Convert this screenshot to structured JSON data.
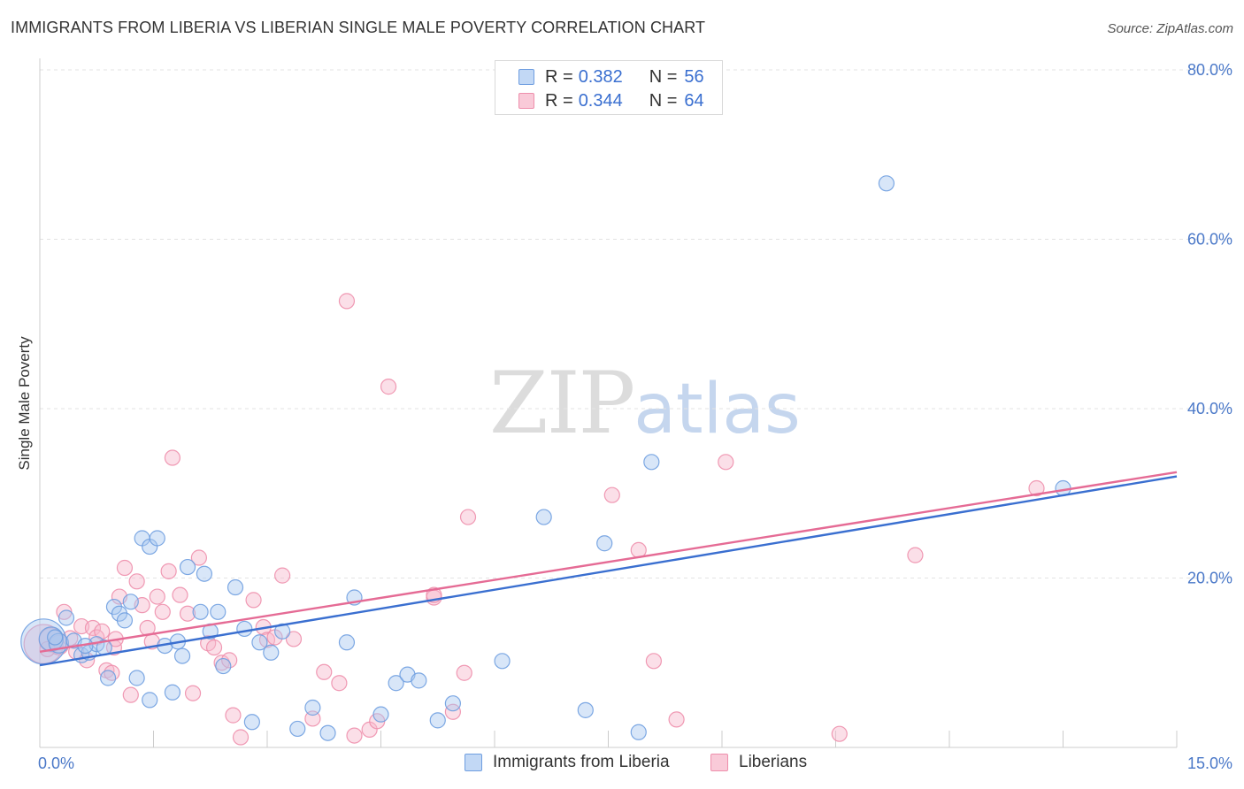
{
  "title": "IMMIGRANTS FROM LIBERIA VS LIBERIAN SINGLE MALE POVERTY CORRELATION CHART",
  "source": "Source: ZipAtlas.com",
  "watermark": {
    "zip": "ZIP",
    "atlas": "atlas"
  },
  "legend": {
    "rows": [
      {
        "r_label": "R =",
        "r_value": "0.382",
        "n_label": "N =",
        "n_value": "56"
      },
      {
        "r_label": "R =",
        "r_value": "0.344",
        "n_label": "N =",
        "n_value": "64"
      }
    ]
  },
  "bottom_legend": [
    "Immigrants from Liberia",
    "Liberians"
  ],
  "colors": {
    "blue_fill": "#a8c8f0",
    "blue_stroke": "#6f9ee0",
    "blue_line": "#3a6fd0",
    "pink_fill": "#f7b9cb",
    "pink_stroke": "#ee8fac",
    "pink_line": "#e56b95",
    "tick_text": "#4a78c8",
    "grid": "#e3e3e3"
  },
  "chart_data": {
    "type": "scatter",
    "title": "IMMIGRANTS FROM LIBERIA VS LIBERIAN SINGLE MALE POVERTY CORRELATION CHART",
    "xlabel": "",
    "ylabel": "Single Male Poverty",
    "xlim": [
      0,
      15
    ],
    "ylim": [
      0,
      80
    ],
    "x_tick_labels": [
      "0.0%",
      "15.0%"
    ],
    "y_ticks": [
      20,
      40,
      60,
      80
    ],
    "y_tick_labels": [
      "20.0%",
      "40.0%",
      "60.0%",
      "80.0%"
    ],
    "grid": true,
    "legend_position": "top-center",
    "series": [
      {
        "name": "Immigrants from Liberia",
        "color": "#a8c8f0",
        "r": 0.382,
        "n": 56,
        "trend": {
          "x": [
            0,
            15
          ],
          "y": [
            9.7,
            32.0
          ]
        },
        "points": [
          {
            "x": 0.05,
            "y": 12.5,
            "s": 3
          },
          {
            "x": 0.15,
            "y": 12.8,
            "s": 1.6
          },
          {
            "x": 0.25,
            "y": 12.3,
            "s": 1.3
          },
          {
            "x": 0.35,
            "y": 15.3,
            "s": 1
          },
          {
            "x": 0.45,
            "y": 12.6,
            "s": 1
          },
          {
            "x": 0.55,
            "y": 10.9,
            "s": 1
          },
          {
            "x": 0.65,
            "y": 11.2,
            "s": 1
          },
          {
            "x": 0.75,
            "y": 12.2,
            "s": 1
          },
          {
            "x": 0.85,
            "y": 11.8,
            "s": 1
          },
          {
            "x": 0.9,
            "y": 8.2,
            "s": 1
          },
          {
            "x": 0.98,
            "y": 16.6,
            "s": 1
          },
          {
            "x": 1.05,
            "y": 15.8,
            "s": 1
          },
          {
            "x": 1.12,
            "y": 15.0,
            "s": 1
          },
          {
            "x": 1.2,
            "y": 17.2,
            "s": 1
          },
          {
            "x": 1.28,
            "y": 8.2,
            "s": 1
          },
          {
            "x": 1.35,
            "y": 24.7,
            "s": 1
          },
          {
            "x": 1.45,
            "y": 23.7,
            "s": 1
          },
          {
            "x": 1.55,
            "y": 24.7,
            "s": 1
          },
          {
            "x": 1.45,
            "y": 5.6,
            "s": 1
          },
          {
            "x": 1.65,
            "y": 12.0,
            "s": 1
          },
          {
            "x": 1.75,
            "y": 6.5,
            "s": 1
          },
          {
            "x": 1.82,
            "y": 12.5,
            "s": 1
          },
          {
            "x": 1.88,
            "y": 10.8,
            "s": 1
          },
          {
            "x": 1.95,
            "y": 21.3,
            "s": 1
          },
          {
            "x": 2.12,
            "y": 16.0,
            "s": 1
          },
          {
            "x": 2.17,
            "y": 20.5,
            "s": 1
          },
          {
            "x": 2.25,
            "y": 13.7,
            "s": 1
          },
          {
            "x": 2.35,
            "y": 16.0,
            "s": 1
          },
          {
            "x": 2.42,
            "y": 9.6,
            "s": 1
          },
          {
            "x": 2.58,
            "y": 18.9,
            "s": 1
          },
          {
            "x": 2.7,
            "y": 14.0,
            "s": 1
          },
          {
            "x": 2.8,
            "y": 3.0,
            "s": 1
          },
          {
            "x": 2.9,
            "y": 12.4,
            "s": 1
          },
          {
            "x": 3.05,
            "y": 11.2,
            "s": 1
          },
          {
            "x": 3.2,
            "y": 13.7,
            "s": 1
          },
          {
            "x": 3.4,
            "y": 2.2,
            "s": 1
          },
          {
            "x": 3.6,
            "y": 4.7,
            "s": 1
          },
          {
            "x": 3.8,
            "y": 1.7,
            "s": 1
          },
          {
            "x": 4.05,
            "y": 12.4,
            "s": 1
          },
          {
            "x": 4.15,
            "y": 17.7,
            "s": 1
          },
          {
            "x": 4.5,
            "y": 3.9,
            "s": 1
          },
          {
            "x": 4.7,
            "y": 7.6,
            "s": 1
          },
          {
            "x": 4.85,
            "y": 8.6,
            "s": 1
          },
          {
            "x": 5.0,
            "y": 7.9,
            "s": 1
          },
          {
            "x": 5.25,
            "y": 3.2,
            "s": 1
          },
          {
            "x": 5.45,
            "y": 5.2,
            "s": 1
          },
          {
            "x": 6.1,
            "y": 10.2,
            "s": 1
          },
          {
            "x": 6.65,
            "y": 27.2,
            "s": 1
          },
          {
            "x": 7.2,
            "y": 4.4,
            "s": 1
          },
          {
            "x": 7.45,
            "y": 24.1,
            "s": 1
          },
          {
            "x": 7.9,
            "y": 1.8,
            "s": 1
          },
          {
            "x": 8.07,
            "y": 33.7,
            "s": 1
          },
          {
            "x": 11.17,
            "y": 66.6,
            "s": 1
          },
          {
            "x": 13.5,
            "y": 30.6,
            "s": 1
          },
          {
            "x": 0.2,
            "y": 13.0,
            "s": 1
          },
          {
            "x": 0.6,
            "y": 12.0,
            "s": 1
          }
        ]
      },
      {
        "name": "Liberians",
        "color": "#f7b9cb",
        "r": 0.344,
        "n": 64,
        "trend": {
          "x": [
            0,
            15
          ],
          "y": [
            11.3,
            32.5
          ]
        },
        "points": [
          {
            "x": 0.05,
            "y": 12.2,
            "s": 2.6
          },
          {
            "x": 0.15,
            "y": 12.7,
            "s": 1.6
          },
          {
            "x": 0.25,
            "y": 12.1,
            "s": 1.3
          },
          {
            "x": 0.32,
            "y": 16.0,
            "s": 1
          },
          {
            "x": 0.4,
            "y": 12.9,
            "s": 1
          },
          {
            "x": 0.48,
            "y": 11.3,
            "s": 1
          },
          {
            "x": 0.55,
            "y": 14.3,
            "s": 1
          },
          {
            "x": 0.62,
            "y": 10.3,
            "s": 1
          },
          {
            "x": 0.7,
            "y": 14.1,
            "s": 1
          },
          {
            "x": 0.75,
            "y": 13.0,
            "s": 1
          },
          {
            "x": 0.82,
            "y": 13.7,
            "s": 1
          },
          {
            "x": 0.88,
            "y": 9.1,
            "s": 1
          },
          {
            "x": 0.95,
            "y": 8.8,
            "s": 1
          },
          {
            "x": 0.98,
            "y": 11.8,
            "s": 1
          },
          {
            "x": 1.05,
            "y": 17.8,
            "s": 1
          },
          {
            "x": 1.12,
            "y": 21.2,
            "s": 1
          },
          {
            "x": 1.2,
            "y": 6.2,
            "s": 1
          },
          {
            "x": 1.28,
            "y": 19.6,
            "s": 1
          },
          {
            "x": 1.35,
            "y": 16.8,
            "s": 1
          },
          {
            "x": 1.42,
            "y": 14.1,
            "s": 1
          },
          {
            "x": 1.48,
            "y": 12.5,
            "s": 1
          },
          {
            "x": 1.55,
            "y": 17.8,
            "s": 1
          },
          {
            "x": 1.62,
            "y": 16.0,
            "s": 1
          },
          {
            "x": 1.7,
            "y": 20.8,
            "s": 1
          },
          {
            "x": 1.75,
            "y": 34.2,
            "s": 1
          },
          {
            "x": 1.85,
            "y": 18.0,
            "s": 1
          },
          {
            "x": 1.95,
            "y": 15.8,
            "s": 1
          },
          {
            "x": 2.02,
            "y": 6.4,
            "s": 1
          },
          {
            "x": 2.1,
            "y": 22.4,
            "s": 1
          },
          {
            "x": 2.22,
            "y": 12.3,
            "s": 1
          },
          {
            "x": 2.3,
            "y": 11.8,
            "s": 1
          },
          {
            "x": 2.4,
            "y": 10.0,
            "s": 1
          },
          {
            "x": 2.55,
            "y": 3.8,
            "s": 1
          },
          {
            "x": 2.65,
            "y": 1.2,
            "s": 1
          },
          {
            "x": 2.82,
            "y": 17.4,
            "s": 1
          },
          {
            "x": 2.95,
            "y": 14.2,
            "s": 1
          },
          {
            "x": 3.0,
            "y": 12.7,
            "s": 1
          },
          {
            "x": 3.2,
            "y": 20.3,
            "s": 1
          },
          {
            "x": 3.35,
            "y": 12.8,
            "s": 1
          },
          {
            "x": 3.6,
            "y": 3.4,
            "s": 1
          },
          {
            "x": 3.75,
            "y": 8.9,
            "s": 1
          },
          {
            "x": 3.95,
            "y": 7.6,
            "s": 1
          },
          {
            "x": 4.05,
            "y": 52.7,
            "s": 1
          },
          {
            "x": 4.15,
            "y": 1.4,
            "s": 1
          },
          {
            "x": 4.35,
            "y": 2.1,
            "s": 1
          },
          {
            "x": 4.45,
            "y": 3.1,
            "s": 1
          },
          {
            "x": 4.6,
            "y": 42.6,
            "s": 1
          },
          {
            "x": 5.2,
            "y": 17.7,
            "s": 1
          },
          {
            "x": 5.45,
            "y": 4.2,
            "s": 1
          },
          {
            "x": 5.6,
            "y": 8.8,
            "s": 1
          },
          {
            "x": 5.65,
            "y": 27.2,
            "s": 1
          },
          {
            "x": 7.55,
            "y": 29.8,
            "s": 1
          },
          {
            "x": 7.9,
            "y": 23.3,
            "s": 1
          },
          {
            "x": 8.1,
            "y": 10.2,
            "s": 1
          },
          {
            "x": 8.4,
            "y": 3.3,
            "s": 1
          },
          {
            "x": 9.05,
            "y": 33.7,
            "s": 1
          },
          {
            "x": 10.55,
            "y": 1.6,
            "s": 1
          },
          {
            "x": 11.55,
            "y": 22.7,
            "s": 1
          },
          {
            "x": 13.15,
            "y": 30.6,
            "s": 1
          },
          {
            "x": 5.2,
            "y": 18.0,
            "s": 1
          },
          {
            "x": 0.1,
            "y": 11.6,
            "s": 1
          },
          {
            "x": 2.5,
            "y": 10.3,
            "s": 1
          },
          {
            "x": 1.0,
            "y": 12.8,
            "s": 1
          },
          {
            "x": 3.1,
            "y": 13.0,
            "s": 1
          }
        ]
      }
    ]
  }
}
